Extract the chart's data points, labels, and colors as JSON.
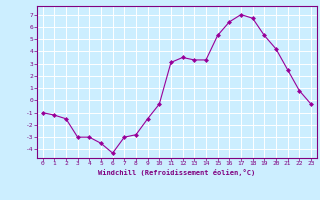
{
  "x": [
    0,
    1,
    2,
    3,
    4,
    5,
    6,
    7,
    8,
    9,
    10,
    11,
    12,
    13,
    14,
    15,
    16,
    17,
    18,
    19,
    20,
    21,
    22,
    23
  ],
  "y": [
    -1.0,
    -1.2,
    -1.5,
    -3.0,
    -3.0,
    -3.5,
    -4.3,
    -3.0,
    -2.8,
    -1.5,
    -0.3,
    3.1,
    3.5,
    3.3,
    3.3,
    5.3,
    6.4,
    7.0,
    6.7,
    5.3,
    4.2,
    2.5,
    0.8,
    -0.3
  ],
  "line_color": "#990099",
  "marker": "D",
  "marker_size": 2,
  "bg_color": "#cceeff",
  "grid_color": "#ffffff",
  "xlabel": "Windchill (Refroidissement éolien,°C)",
  "xlabel_color": "#800080",
  "tick_color": "#800080",
  "spine_color": "#800080",
  "xlim": [
    -0.5,
    23.5
  ],
  "ylim": [
    -4.7,
    7.7
  ],
  "yticks": [
    -4,
    -3,
    -2,
    -1,
    0,
    1,
    2,
    3,
    4,
    5,
    6,
    7
  ],
  "xticks": [
    0,
    1,
    2,
    3,
    4,
    5,
    6,
    7,
    8,
    9,
    10,
    11,
    12,
    13,
    14,
    15,
    16,
    17,
    18,
    19,
    20,
    21,
    22,
    23
  ]
}
